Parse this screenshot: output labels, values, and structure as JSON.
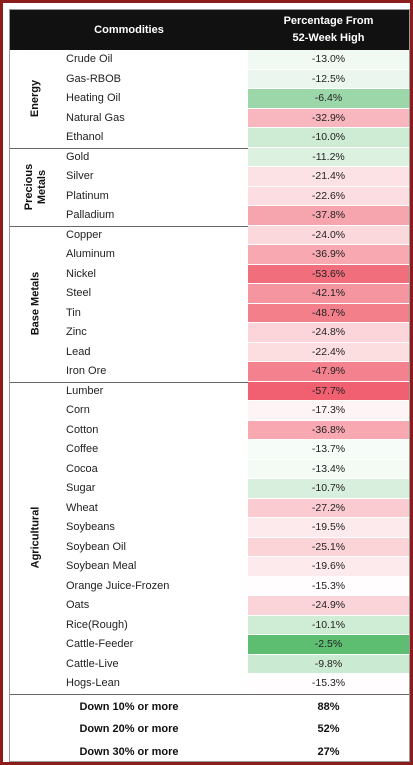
{
  "header": {
    "col1": "Commodities",
    "col2_line1": "Percentage From",
    "col2_line2": "52-Week High"
  },
  "chart_data": {
    "type": "table",
    "columns": [
      "Commodities",
      "Percentage From 52-Week High"
    ],
    "groups": [
      {
        "name": "Energy",
        "rows": [
          {
            "name": "Crude Oil",
            "value": "-13.0%",
            "num": -13.0
          },
          {
            "name": "Gas-RBOB",
            "value": "-12.5%",
            "num": -12.5
          },
          {
            "name": "Heating Oil",
            "value": "-6.4%",
            "num": -6.4
          },
          {
            "name": "Natural Gas",
            "value": "-32.9%",
            "num": -32.9
          },
          {
            "name": "Ethanol",
            "value": "-10.0%",
            "num": -10.0
          }
        ]
      },
      {
        "name": "Precious Metals",
        "rows": [
          {
            "name": "Gold",
            "value": "-11.2%",
            "num": -11.2
          },
          {
            "name": "Silver",
            "value": "-21.4%",
            "num": -21.4
          },
          {
            "name": "Platinum",
            "value": "-22.6%",
            "num": -22.6
          },
          {
            "name": "Palladium",
            "value": "-37.8%",
            "num": -37.8
          }
        ]
      },
      {
        "name": "Base Metals",
        "rows": [
          {
            "name": "Copper",
            "value": "-24.0%",
            "num": -24.0
          },
          {
            "name": "Aluminum",
            "value": "-36.9%",
            "num": -36.9
          },
          {
            "name": "Nickel",
            "value": "-53.6%",
            "num": -53.6
          },
          {
            "name": "Steel",
            "value": "-42.1%",
            "num": -42.1
          },
          {
            "name": "Tin",
            "value": "-48.7%",
            "num": -48.7
          },
          {
            "name": "Zinc",
            "value": "-24.8%",
            "num": -24.8
          },
          {
            "name": "Lead",
            "value": "-22.4%",
            "num": -22.4
          },
          {
            "name": "Iron Ore",
            "value": "-47.9%",
            "num": -47.9
          }
        ]
      },
      {
        "name": "Agricultural",
        "rows": [
          {
            "name": "Lumber",
            "value": "-57.7%",
            "num": -57.7
          },
          {
            "name": "Corn",
            "value": "-17.3%",
            "num": -17.3
          },
          {
            "name": "Cotton",
            "value": "-36.8%",
            "num": -36.8
          },
          {
            "name": "Coffee",
            "value": "-13.7%",
            "num": -13.7
          },
          {
            "name": "Cocoa",
            "value": "-13.4%",
            "num": -13.4
          },
          {
            "name": "Sugar",
            "value": "-10.7%",
            "num": -10.7
          },
          {
            "name": "Wheat",
            "value": "-27.2%",
            "num": -27.2
          },
          {
            "name": "Soybeans",
            "value": "-19.5%",
            "num": -19.5
          },
          {
            "name": "Soybean Oil",
            "value": "-25.1%",
            "num": -25.1
          },
          {
            "name": "Soybean Meal",
            "value": "-19.6%",
            "num": -19.6
          },
          {
            "name": "Orange Juice-Frozen",
            "value": "-15.3%",
            "num": -15.3
          },
          {
            "name": "Oats",
            "value": "-24.9%",
            "num": -24.9
          },
          {
            "name": "Rice(Rough)",
            "value": "-10.1%",
            "num": -10.1
          },
          {
            "name": "Cattle-Feeder",
            "value": "-2.5%",
            "num": -2.5
          },
          {
            "name": "Cattle-Live",
            "value": "-9.8%",
            "num": -9.8
          },
          {
            "name": "Hogs-Lean",
            "value": "-15.3%",
            "num": -15.3
          }
        ]
      }
    ],
    "summary": [
      {
        "label": "Down 10% or more",
        "value": "88%"
      },
      {
        "label": "Down 20% or more",
        "value": "52%"
      },
      {
        "label": "Down 30% or more",
        "value": "27%"
      }
    ],
    "colors": {
      "negative_max": "#f06070",
      "positive_max": "#5dbe72",
      "neutral": "#ffffff"
    }
  }
}
